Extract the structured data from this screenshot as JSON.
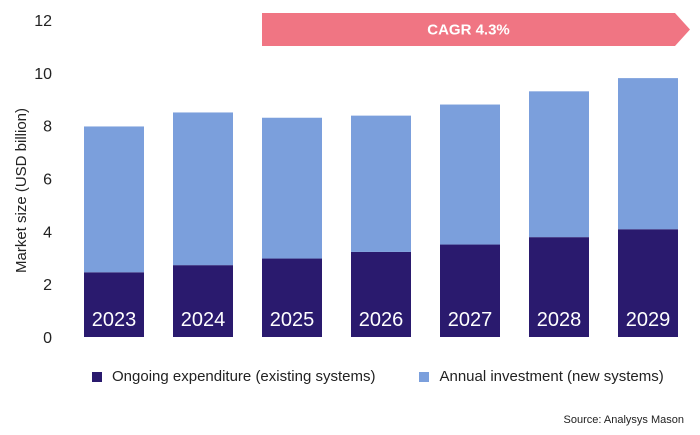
{
  "chart_data": {
    "type": "bar",
    "stacked": true,
    "categories": [
      "2023",
      "2024",
      "2025",
      "2026",
      "2027",
      "2028",
      "2029"
    ],
    "series": [
      {
        "name": "Ongoing expenditure (existing systems)",
        "color": "#2a1a6e",
        "values": [
          2.45,
          2.72,
          2.97,
          3.22,
          3.5,
          3.78,
          4.08
        ]
      },
      {
        "name": "Annual investment (new systems)",
        "color": "#7b9fdc",
        "values": [
          5.52,
          5.78,
          5.33,
          5.16,
          5.3,
          5.52,
          5.72
        ]
      }
    ],
    "ylabel": "Market size (USD billion)",
    "xlabel": "",
    "ylim": [
      0,
      12
    ],
    "yticks": [
      0,
      2,
      4,
      6,
      8,
      10,
      12
    ],
    "grid": false,
    "legend": "bottom",
    "annotation": {
      "text": "CAGR 4.3%",
      "from": "2025",
      "to": "2029",
      "color": "#f07583"
    }
  },
  "source": "Source: Analysys Mason"
}
